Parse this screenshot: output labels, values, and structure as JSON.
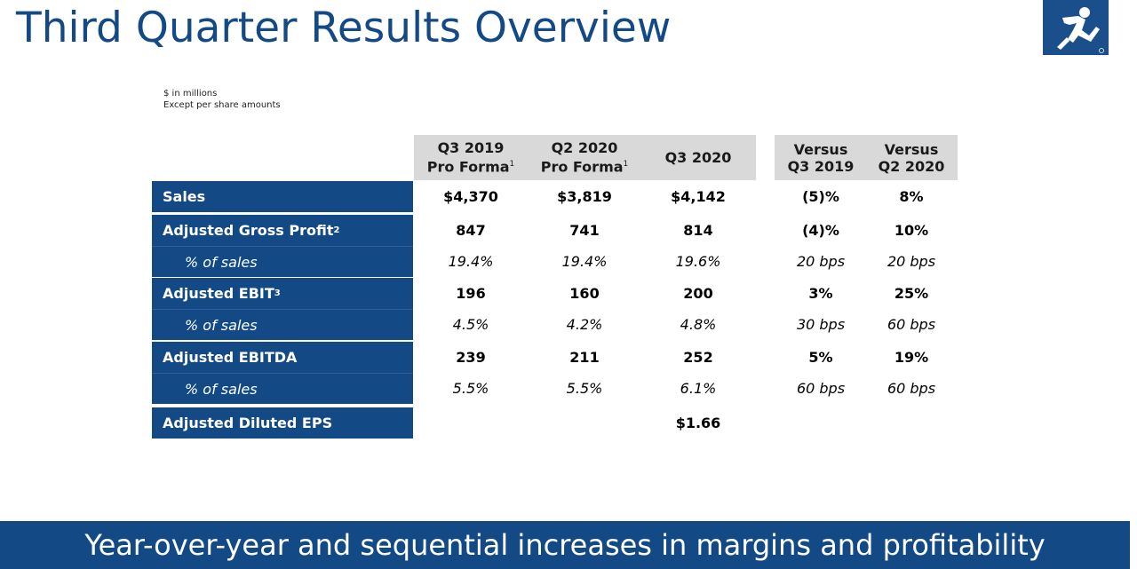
{
  "title": "Third Quarter Results Overview",
  "units": {
    "line1": "$ in millions",
    "line2": "Except per share amounts"
  },
  "headers": {
    "q3_2019": {
      "line1": "Q3 2019",
      "line2": "Pro Forma",
      "note": "1"
    },
    "q2_2020": {
      "line1": "Q2 2020",
      "line2": "Pro Forma",
      "note": "1"
    },
    "q3_2020": {
      "line1": "Q3 2020"
    },
    "vs_q3_2019": {
      "line1": "Versus",
      "line2": "Q3 2019"
    },
    "vs_q2_2020": {
      "line1": "Versus",
      "line2": "Q2 2020"
    }
  },
  "rows": [
    {
      "label": "Sales",
      "note": "",
      "values": [
        "$4,370",
        "$3,819",
        "$4,142",
        "(5)%",
        "8%"
      ]
    },
    {
      "label": "Adjusted Gross Profit",
      "note": "2",
      "values": [
        "847",
        "741",
        "814",
        "(4)%",
        "10%"
      ]
    },
    {
      "label": "% of sales",
      "note": "",
      "values": [
        "19.4%",
        "19.4%",
        "19.6%",
        "20 bps",
        "20 bps"
      ]
    },
    {
      "label": "Adjusted EBIT",
      "note": "3",
      "values": [
        "196",
        "160",
        "200",
        "3%",
        "25%"
      ]
    },
    {
      "label": "% of sales",
      "note": "",
      "values": [
        "4.5%",
        "4.2%",
        "4.8%",
        "30 bps",
        "60 bps"
      ]
    },
    {
      "label": "Adjusted EBITDA",
      "note": "",
      "values": [
        "239",
        "211",
        "252",
        "5%",
        "19%"
      ]
    },
    {
      "label": "% of sales",
      "note": "",
      "values": [
        "5.5%",
        "5.5%",
        "6.1%",
        "60 bps",
        "60 bps"
      ]
    },
    {
      "label": "Adjusted Diluted EPS",
      "note": "",
      "values": [
        "",
        "",
        "$1.66",
        "",
        ""
      ]
    }
  ],
  "banner": "Year-over-year and sequential increases in margins and profitability",
  "colors": {
    "brand": "#134a85",
    "header_bg": "#d9d9d9"
  },
  "icons": {
    "logo": "running-man-logo-icon"
  }
}
